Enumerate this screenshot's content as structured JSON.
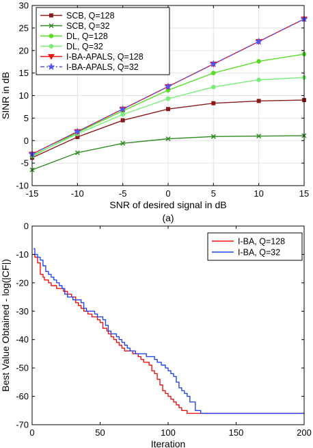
{
  "chart_data": [
    {
      "type": "line",
      "caption": "(a)",
      "xlabel": "SNR of desired signal in dB",
      "ylabel": "SINR in dB",
      "xlim": [
        -15,
        15
      ],
      "ylim": [
        -10,
        30
      ],
      "xticks": [
        "-15",
        "-10",
        "-5",
        "0",
        "5",
        "10",
        "15"
      ],
      "yticks": [
        "-10",
        "-5",
        "0",
        "5",
        "10",
        "15",
        "20",
        "25",
        "30"
      ],
      "xtick_values": [
        -15,
        -10,
        -5,
        0,
        5,
        10,
        15
      ],
      "ytick_values": [
        -10,
        -5,
        0,
        5,
        10,
        15,
        20,
        25,
        30
      ],
      "grid": true,
      "legend_position": "top-left",
      "x": [
        -15,
        -10,
        -5,
        0,
        5,
        10,
        15
      ],
      "series": [
        {
          "name": "SCB, Q=128",
          "values": [
            -3.8,
            0.8,
            4.5,
            7.0,
            8.3,
            8.8,
            9.0
          ],
          "color": "#8b1a1a",
          "marker": "square",
          "dash": "solid"
        },
        {
          "name": "SCB, Q=32",
          "values": [
            -6.5,
            -2.7,
            -0.6,
            0.4,
            0.9,
            1.0,
            1.1
          ],
          "color": "#2e8b1f",
          "marker": "x",
          "dash": "solid"
        },
        {
          "name": "DL, Q=128",
          "values": [
            -3.5,
            1.8,
            6.6,
            11.2,
            15.0,
            17.6,
            19.2
          ],
          "color": "#55dd22",
          "marker": "circle",
          "dash": "solid"
        },
        {
          "name": "DL, Q=32",
          "values": [
            -3.3,
            1.5,
            5.8,
            9.3,
            11.9,
            13.5,
            14.0
          ],
          "color": "#77ee77",
          "marker": "circle",
          "dash": "solid"
        },
        {
          "name": "I-BA-APALS, Q=128",
          "values": [
            -3.0,
            2.0,
            7.0,
            12.0,
            17.0,
            22.0,
            27.0
          ],
          "color": "#ee1111",
          "marker": "triangle",
          "dash": "solid"
        },
        {
          "name": "I-BA-APALS, Q=32",
          "values": [
            -3.0,
            2.0,
            7.0,
            12.0,
            17.0,
            22.0,
            27.0
          ],
          "color": "#5555ee",
          "marker": "star",
          "dash": "dashdot"
        }
      ]
    },
    {
      "type": "line",
      "caption": "(b)",
      "xlabel": "Iteration",
      "ylabel": "Best Value Obtained - log(|CF|)",
      "xlim": [
        0,
        200
      ],
      "ylim": [
        -70,
        0
      ],
      "xticks": [
        "0",
        "50",
        "100",
        "150",
        "200"
      ],
      "yticks": [
        "-70",
        "-60",
        "-50",
        "-40",
        "-30",
        "-20",
        "-10",
        "0"
      ],
      "xtick_values": [
        0,
        50,
        100,
        150,
        200
      ],
      "ytick_values": [
        -70,
        -60,
        -50,
        -40,
        -30,
        -20,
        -10,
        0
      ],
      "grid": false,
      "legend_position": "top-right",
      "series": [
        {
          "name": "I-BA, Q=128",
          "color": "#ee1111",
          "x": [
            1,
            2,
            4,
            6,
            8,
            9,
            12,
            14,
            16,
            18,
            20,
            23,
            26,
            29,
            32,
            34,
            36,
            38,
            41,
            44,
            46,
            48,
            50,
            52,
            55,
            56,
            58,
            60,
            62,
            64,
            66,
            68,
            70,
            72,
            74,
            76,
            78,
            80,
            82,
            84,
            86,
            88,
            90,
            92,
            94,
            96,
            98,
            100,
            102,
            104,
            106,
            108,
            110,
            112,
            114,
            116,
            118,
            120,
            135,
            200
          ],
          "values": [
            -10,
            -11,
            -13,
            -17,
            -18,
            -19,
            -20,
            -21,
            -21,
            -22,
            -22,
            -23,
            -24,
            -25,
            -27,
            -28,
            -29,
            -30,
            -31,
            -32,
            -32,
            -33,
            -34,
            -36,
            -37,
            -38,
            -39,
            -40,
            -41,
            -42,
            -43,
            -44,
            -44,
            -44,
            -45,
            -45,
            -46,
            -47,
            -48,
            -48,
            -49,
            -51,
            -52,
            -54,
            -56,
            -58,
            -59,
            -60,
            -61,
            -62,
            -63,
            -64,
            -65,
            -65,
            -66,
            -66,
            -66,
            -66,
            -66,
            -66
          ]
        },
        {
          "name": "I-BA, Q=32",
          "color": "#2244ee",
          "x": [
            1,
            2,
            4,
            6,
            8,
            10,
            12,
            14,
            16,
            18,
            20,
            22,
            24,
            26,
            28,
            30,
            33,
            36,
            38,
            40,
            43,
            46,
            48,
            50,
            52,
            54,
            56,
            58,
            60,
            62,
            64,
            66,
            68,
            70,
            72,
            74,
            76,
            80,
            84,
            88,
            90,
            92,
            95,
            98,
            100,
            102,
            104,
            106,
            108,
            110,
            112,
            114,
            116,
            120,
            124,
            128,
            135,
            200
          ],
          "values": [
            -8,
            -10,
            -11,
            -12,
            -14,
            -16,
            -17,
            -18,
            -19,
            -20,
            -21,
            -22,
            -24,
            -25,
            -25,
            -26,
            -26,
            -27,
            -29,
            -30,
            -30,
            -31,
            -32,
            -32,
            -33,
            -35,
            -37,
            -38,
            -38,
            -39,
            -40,
            -41,
            -42,
            -43,
            -44,
            -44,
            -45,
            -45,
            -46,
            -46,
            -47,
            -48,
            -49,
            -50,
            -51,
            -52,
            -53,
            -55,
            -57,
            -58,
            -59,
            -60,
            -62,
            -65,
            -66,
            -66,
            -66,
            -66
          ]
        }
      ]
    }
  ]
}
